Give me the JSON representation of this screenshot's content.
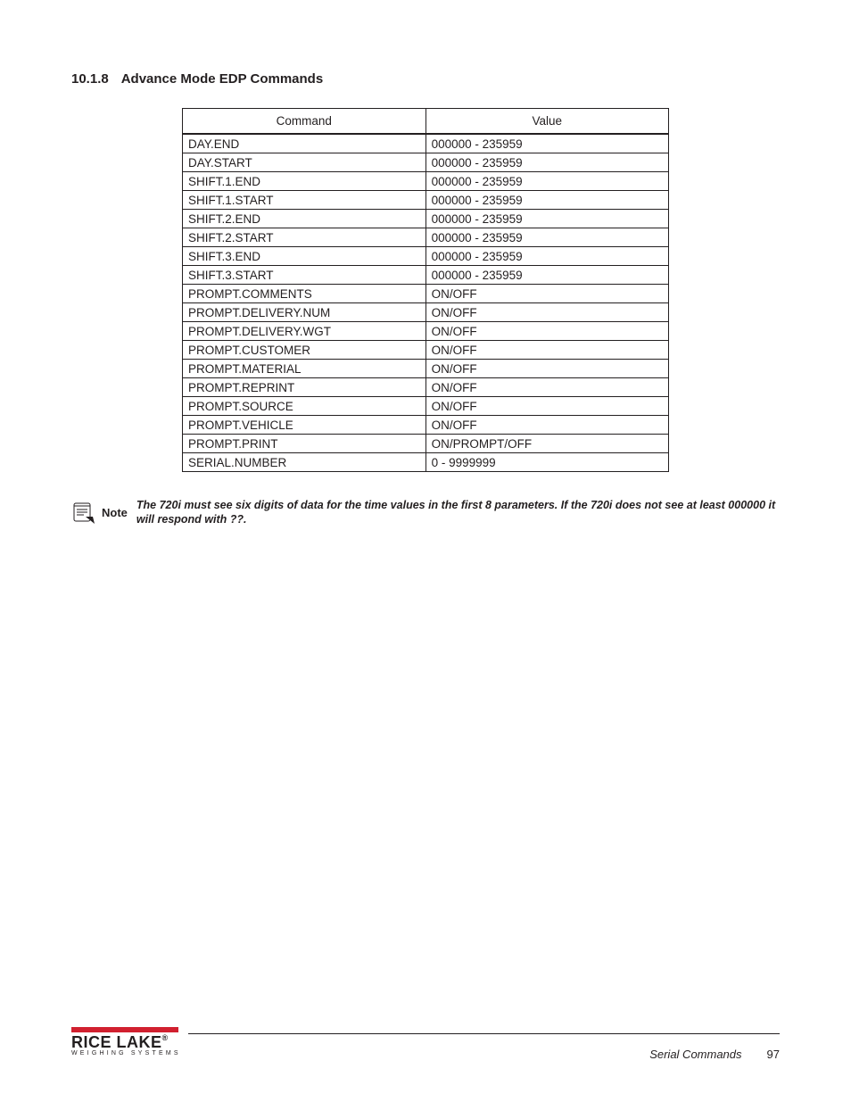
{
  "heading": {
    "number": "10.1.8",
    "title": "Advance Mode EDP Commands"
  },
  "table": {
    "columns": [
      "Command",
      "Value"
    ],
    "rows": [
      [
        "DAY.END",
        "000000 - 235959"
      ],
      [
        "DAY.START",
        "000000 - 235959"
      ],
      [
        "SHIFT.1.END",
        "000000 - 235959"
      ],
      [
        "SHIFT.1.START",
        "000000 - 235959"
      ],
      [
        "SHIFT.2.END",
        "000000 - 235959"
      ],
      [
        "SHIFT.2.START",
        "000000 - 235959"
      ],
      [
        "SHIFT.3.END",
        "000000 - 235959"
      ],
      [
        "SHIFT.3.START",
        "000000 - 235959"
      ],
      [
        "PROMPT.COMMENTS",
        "ON/OFF"
      ],
      [
        "PROMPT.DELIVERY.NUM",
        "ON/OFF"
      ],
      [
        "PROMPT.DELIVERY.WGT",
        "ON/OFF"
      ],
      [
        "PROMPT.CUSTOMER",
        "ON/OFF"
      ],
      [
        "PROMPT.MATERIAL",
        "ON/OFF"
      ],
      [
        "PROMPT.REPRINT",
        "ON/OFF"
      ],
      [
        "PROMPT.SOURCE",
        "ON/OFF"
      ],
      [
        "PROMPT.VEHICLE",
        "ON/OFF"
      ],
      [
        "PROMPT.PRINT",
        "ON/PROMPT/OFF"
      ],
      [
        "SERIAL.NUMBER",
        "0 - 9999999"
      ]
    ]
  },
  "note": {
    "label": "Note",
    "text": "The 720i must see six digits of data for the time values in the first 8 parameters. If the 720i does not see at least 000000 it will respond with ??."
  },
  "footer": {
    "brand": "RICE LAKE",
    "tagline": "WEIGHING SYSTEMS",
    "section": "Serial Commands",
    "page": "97",
    "accent_color": "#d1202f"
  }
}
